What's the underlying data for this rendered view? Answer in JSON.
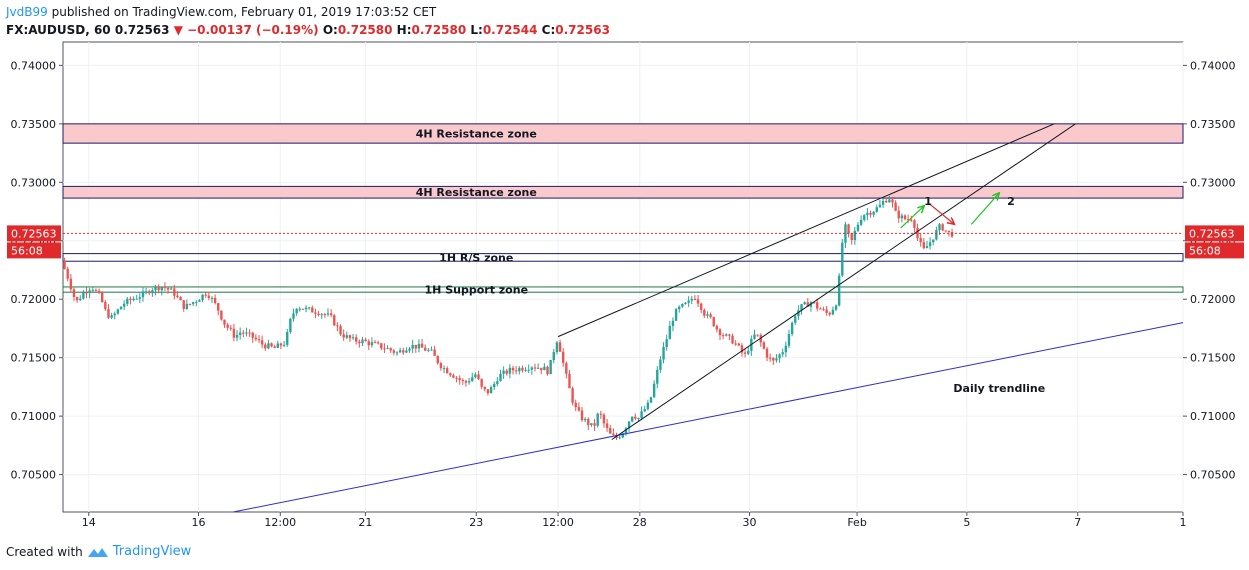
{
  "header": {
    "author": "JvdB99",
    "published_text": "published on TradingView.com, February 01, 2019 17:03:52 CET",
    "symbol": "FX:AUDUSD, 60",
    "last": "0.72563",
    "change": "▼ −0.00137 (−0.19%)",
    "o_label": "O:",
    "o_value": "0.72580",
    "h_label": "H:",
    "h_value": "0.72580",
    "l_label": "L:",
    "l_value": "0.72544",
    "c_label": "C:",
    "c_value": "0.72563"
  },
  "footer": {
    "created_with": "Created with",
    "brand": "TradingView"
  },
  "colors": {
    "up": "#26a69a",
    "down": "#ef5350",
    "zone_fill": "#f9c9cc",
    "zone_border": "#1a1a6e",
    "support_line": "#1b7a43",
    "trendline": "#2b2bcf",
    "price_tag": "#e0292b",
    "grid": "#eef0f4"
  },
  "chart_data": {
    "type": "candlestick",
    "symbol": "FX:AUDUSD",
    "interval": "60",
    "ylim": [
      0.7018,
      0.742
    ],
    "y_ticks": [
      "0.74000",
      "0.73500",
      "0.73000",
      "0.72500",
      "0.72000",
      "0.71500",
      "0.71000",
      "0.70500"
    ],
    "y_tick_values": [
      0.74,
      0.735,
      0.73,
      0.725,
      0.72,
      0.715,
      0.71,
      0.705
    ],
    "x_range": [
      0,
      100
    ],
    "x_ticks": [
      {
        "label": "14",
        "x": 2.3
      },
      {
        "label": "16",
        "x": 12.1
      },
      {
        "label": "12:00",
        "x": 19.4
      },
      {
        "label": "21",
        "x": 27.0
      },
      {
        "label": "23",
        "x": 36.9
      },
      {
        "label": "12:00",
        "x": 44.2
      },
      {
        "label": "28",
        "x": 51.5
      },
      {
        "label": "30",
        "x": 61.3
      },
      {
        "label": "Feb",
        "x": 70.9
      },
      {
        "label": "5",
        "x": 80.7
      },
      {
        "label": "7",
        "x": 90.6
      },
      {
        "label": "1",
        "x": 100.0
      }
    ],
    "last_price": 0.72563,
    "last_price_label": "0.72563",
    "countdown": "56:08",
    "price_path": [
      [
        0,
        0.7233
      ],
      [
        0.6,
        0.7218
      ],
      [
        1.3,
        0.7197
      ],
      [
        2.0,
        0.7206
      ],
      [
        2.7,
        0.7211
      ],
      [
        3.5,
        0.7201
      ],
      [
        4.0,
        0.7188
      ],
      [
        4.5,
        0.7184
      ],
      [
        5.5,
        0.7196
      ],
      [
        6.5,
        0.7201
      ],
      [
        7.5,
        0.7205
      ],
      [
        8.0,
        0.7209
      ],
      [
        9.0,
        0.7211
      ],
      [
        10.0,
        0.7206
      ],
      [
        10.5,
        0.7199
      ],
      [
        11.0,
        0.7193
      ],
      [
        12.0,
        0.7199
      ],
      [
        13.0,
        0.7206
      ],
      [
        13.5,
        0.7199
      ],
      [
        14.0,
        0.7191
      ],
      [
        14.5,
        0.718
      ],
      [
        15.0,
        0.7174
      ],
      [
        15.5,
        0.7168
      ],
      [
        16.0,
        0.7172
      ],
      [
        17.0,
        0.7168
      ],
      [
        18.0,
        0.7161
      ],
      [
        19.0,
        0.7158
      ],
      [
        20.0,
        0.7163
      ],
      [
        20.5,
        0.7184
      ],
      [
        21.0,
        0.7194
      ],
      [
        22.0,
        0.7191
      ],
      [
        23.0,
        0.7189
      ],
      [
        24.0,
        0.7185
      ],
      [
        24.5,
        0.7178
      ],
      [
        25.0,
        0.717
      ],
      [
        26.0,
        0.7165
      ],
      [
        27.0,
        0.7164
      ],
      [
        28.0,
        0.7161
      ],
      [
        29.0,
        0.7158
      ],
      [
        30.0,
        0.7154
      ],
      [
        31.0,
        0.716
      ],
      [
        31.5,
        0.716
      ],
      [
        32.0,
        0.7159
      ],
      [
        33.0,
        0.7155
      ],
      [
        33.5,
        0.7148
      ],
      [
        34.0,
        0.7142
      ],
      [
        35.0,
        0.7135
      ],
      [
        36.0,
        0.7128
      ],
      [
        37.0,
        0.7136
      ],
      [
        37.5,
        0.7124
      ],
      [
        38.0,
        0.712
      ],
      [
        38.5,
        0.7125
      ],
      [
        39.0,
        0.7134
      ],
      [
        40.0,
        0.7139
      ],
      [
        41.0,
        0.7141
      ],
      [
        42.0,
        0.7143
      ],
      [
        43.0,
        0.7141
      ],
      [
        43.5,
        0.7138
      ],
      [
        44.0,
        0.7158
      ],
      [
        44.3,
        0.7167
      ],
      [
        44.8,
        0.7145
      ],
      [
        45.3,
        0.7125
      ],
      [
        45.8,
        0.7108
      ],
      [
        46.5,
        0.7098
      ],
      [
        47.5,
        0.709
      ],
      [
        48.0,
        0.7104
      ],
      [
        48.5,
        0.7092
      ],
      [
        49.0,
        0.7084
      ],
      [
        49.5,
        0.7081
      ],
      [
        50.0,
        0.7085
      ],
      [
        50.5,
        0.7093
      ],
      [
        51.0,
        0.7102
      ],
      [
        51.5,
        0.7098
      ],
      [
        52.0,
        0.7105
      ],
      [
        52.5,
        0.7111
      ],
      [
        53.0,
        0.713
      ],
      [
        53.5,
        0.715
      ],
      [
        54.0,
        0.7165
      ],
      [
        54.5,
        0.7182
      ],
      [
        55.0,
        0.7191
      ],
      [
        56.0,
        0.7197
      ],
      [
        56.5,
        0.7203
      ],
      [
        57.0,
        0.7196
      ],
      [
        57.5,
        0.7186
      ],
      [
        58.0,
        0.7183
      ],
      [
        58.5,
        0.7175
      ],
      [
        59.0,
        0.717
      ],
      [
        60.0,
        0.7164
      ],
      [
        60.5,
        0.7158
      ],
      [
        61.0,
        0.7151
      ],
      [
        61.5,
        0.7162
      ],
      [
        62.0,
        0.7171
      ],
      [
        63.0,
        0.7152
      ],
      [
        63.5,
        0.7146
      ],
      [
        64.0,
        0.7151
      ],
      [
        64.5,
        0.7157
      ],
      [
        65.0,
        0.7172
      ],
      [
        65.5,
        0.7187
      ],
      [
        66.0,
        0.7193
      ],
      [
        67.0,
        0.7198
      ],
      [
        67.5,
        0.7193
      ],
      [
        68.0,
        0.719
      ],
      [
        68.5,
        0.7187
      ],
      [
        69.0,
        0.7194
      ],
      [
        69.3,
        0.72
      ],
      [
        69.6,
        0.7238
      ],
      [
        69.9,
        0.7264
      ],
      [
        70.5,
        0.7248
      ],
      [
        71.0,
        0.7262
      ],
      [
        71.5,
        0.7272
      ],
      [
        72.5,
        0.7276
      ],
      [
        73.0,
        0.7279
      ],
      [
        73.5,
        0.7285
      ],
      [
        74.0,
        0.7287
      ],
      [
        74.5,
        0.7273
      ],
      [
        75.0,
        0.727
      ],
      [
        75.5,
        0.7268
      ],
      [
        76.0,
        0.727
      ],
      [
        76.5,
        0.725
      ],
      [
        77.0,
        0.7242
      ],
      [
        77.5,
        0.7248
      ],
      [
        78.0,
        0.7256
      ],
      [
        78.5,
        0.7263
      ],
      [
        79.0,
        0.7258
      ],
      [
        79.3,
        0.7256
      ]
    ],
    "zones": [
      {
        "label": "4H Resistance zone",
        "y_top": 0.735,
        "y_bottom": 0.73335,
        "x_from": 0,
        "x_to": 100,
        "filled": true
      },
      {
        "label": "4H Resistance zone",
        "y_top": 0.72965,
        "y_bottom": 0.72865,
        "x_from": 0,
        "x_to": 100,
        "filled": true
      },
      {
        "label": "1H R/S zone",
        "y_top": 0.7239,
        "y_bottom": 0.72325,
        "x_from": 0,
        "x_to": 100,
        "filled": false
      },
      {
        "label": "1H Support zone",
        "y_top": 0.72105,
        "y_bottom": 0.7206,
        "x_from": 0,
        "x_to": 100,
        "filled": false,
        "green": true
      }
    ],
    "lines": [
      {
        "name": "Daily trendline",
        "from": [
          15.2,
          0.7018
        ],
        "to": [
          100,
          0.718
        ],
        "color": "blue"
      },
      {
        "name": "rising-wedge-upper",
        "from": [
          44.2,
          0.7168
        ],
        "to": [
          88.5,
          0.735
        ],
        "color": "black"
      },
      {
        "name": "rising-wedge-lower",
        "from": [
          49.0,
          0.708
        ],
        "to": [
          90.4,
          0.735
        ],
        "color": "black"
      }
    ],
    "annotations": [
      {
        "text": "1H Support zone",
        "x": 36.9,
        "y": 0.72155
      },
      {
        "text": "Daily trendline",
        "x": 79.5,
        "y": 0.7124
      },
      {
        "text": "1",
        "x": 76.9,
        "y": 0.7284
      },
      {
        "text": "2",
        "x": 84.3,
        "y": 0.7284
      }
    ],
    "arrows": [
      {
        "color": "green",
        "from": [
          74.8,
          0.7261
        ],
        "to": [
          76.9,
          0.728
        ]
      },
      {
        "color": "red",
        "from": [
          77.3,
          0.7282
        ],
        "to": [
          79.6,
          0.7264
        ]
      },
      {
        "color": "green",
        "from": [
          81.1,
          0.7264
        ],
        "to": [
          83.6,
          0.7291
        ]
      }
    ]
  }
}
